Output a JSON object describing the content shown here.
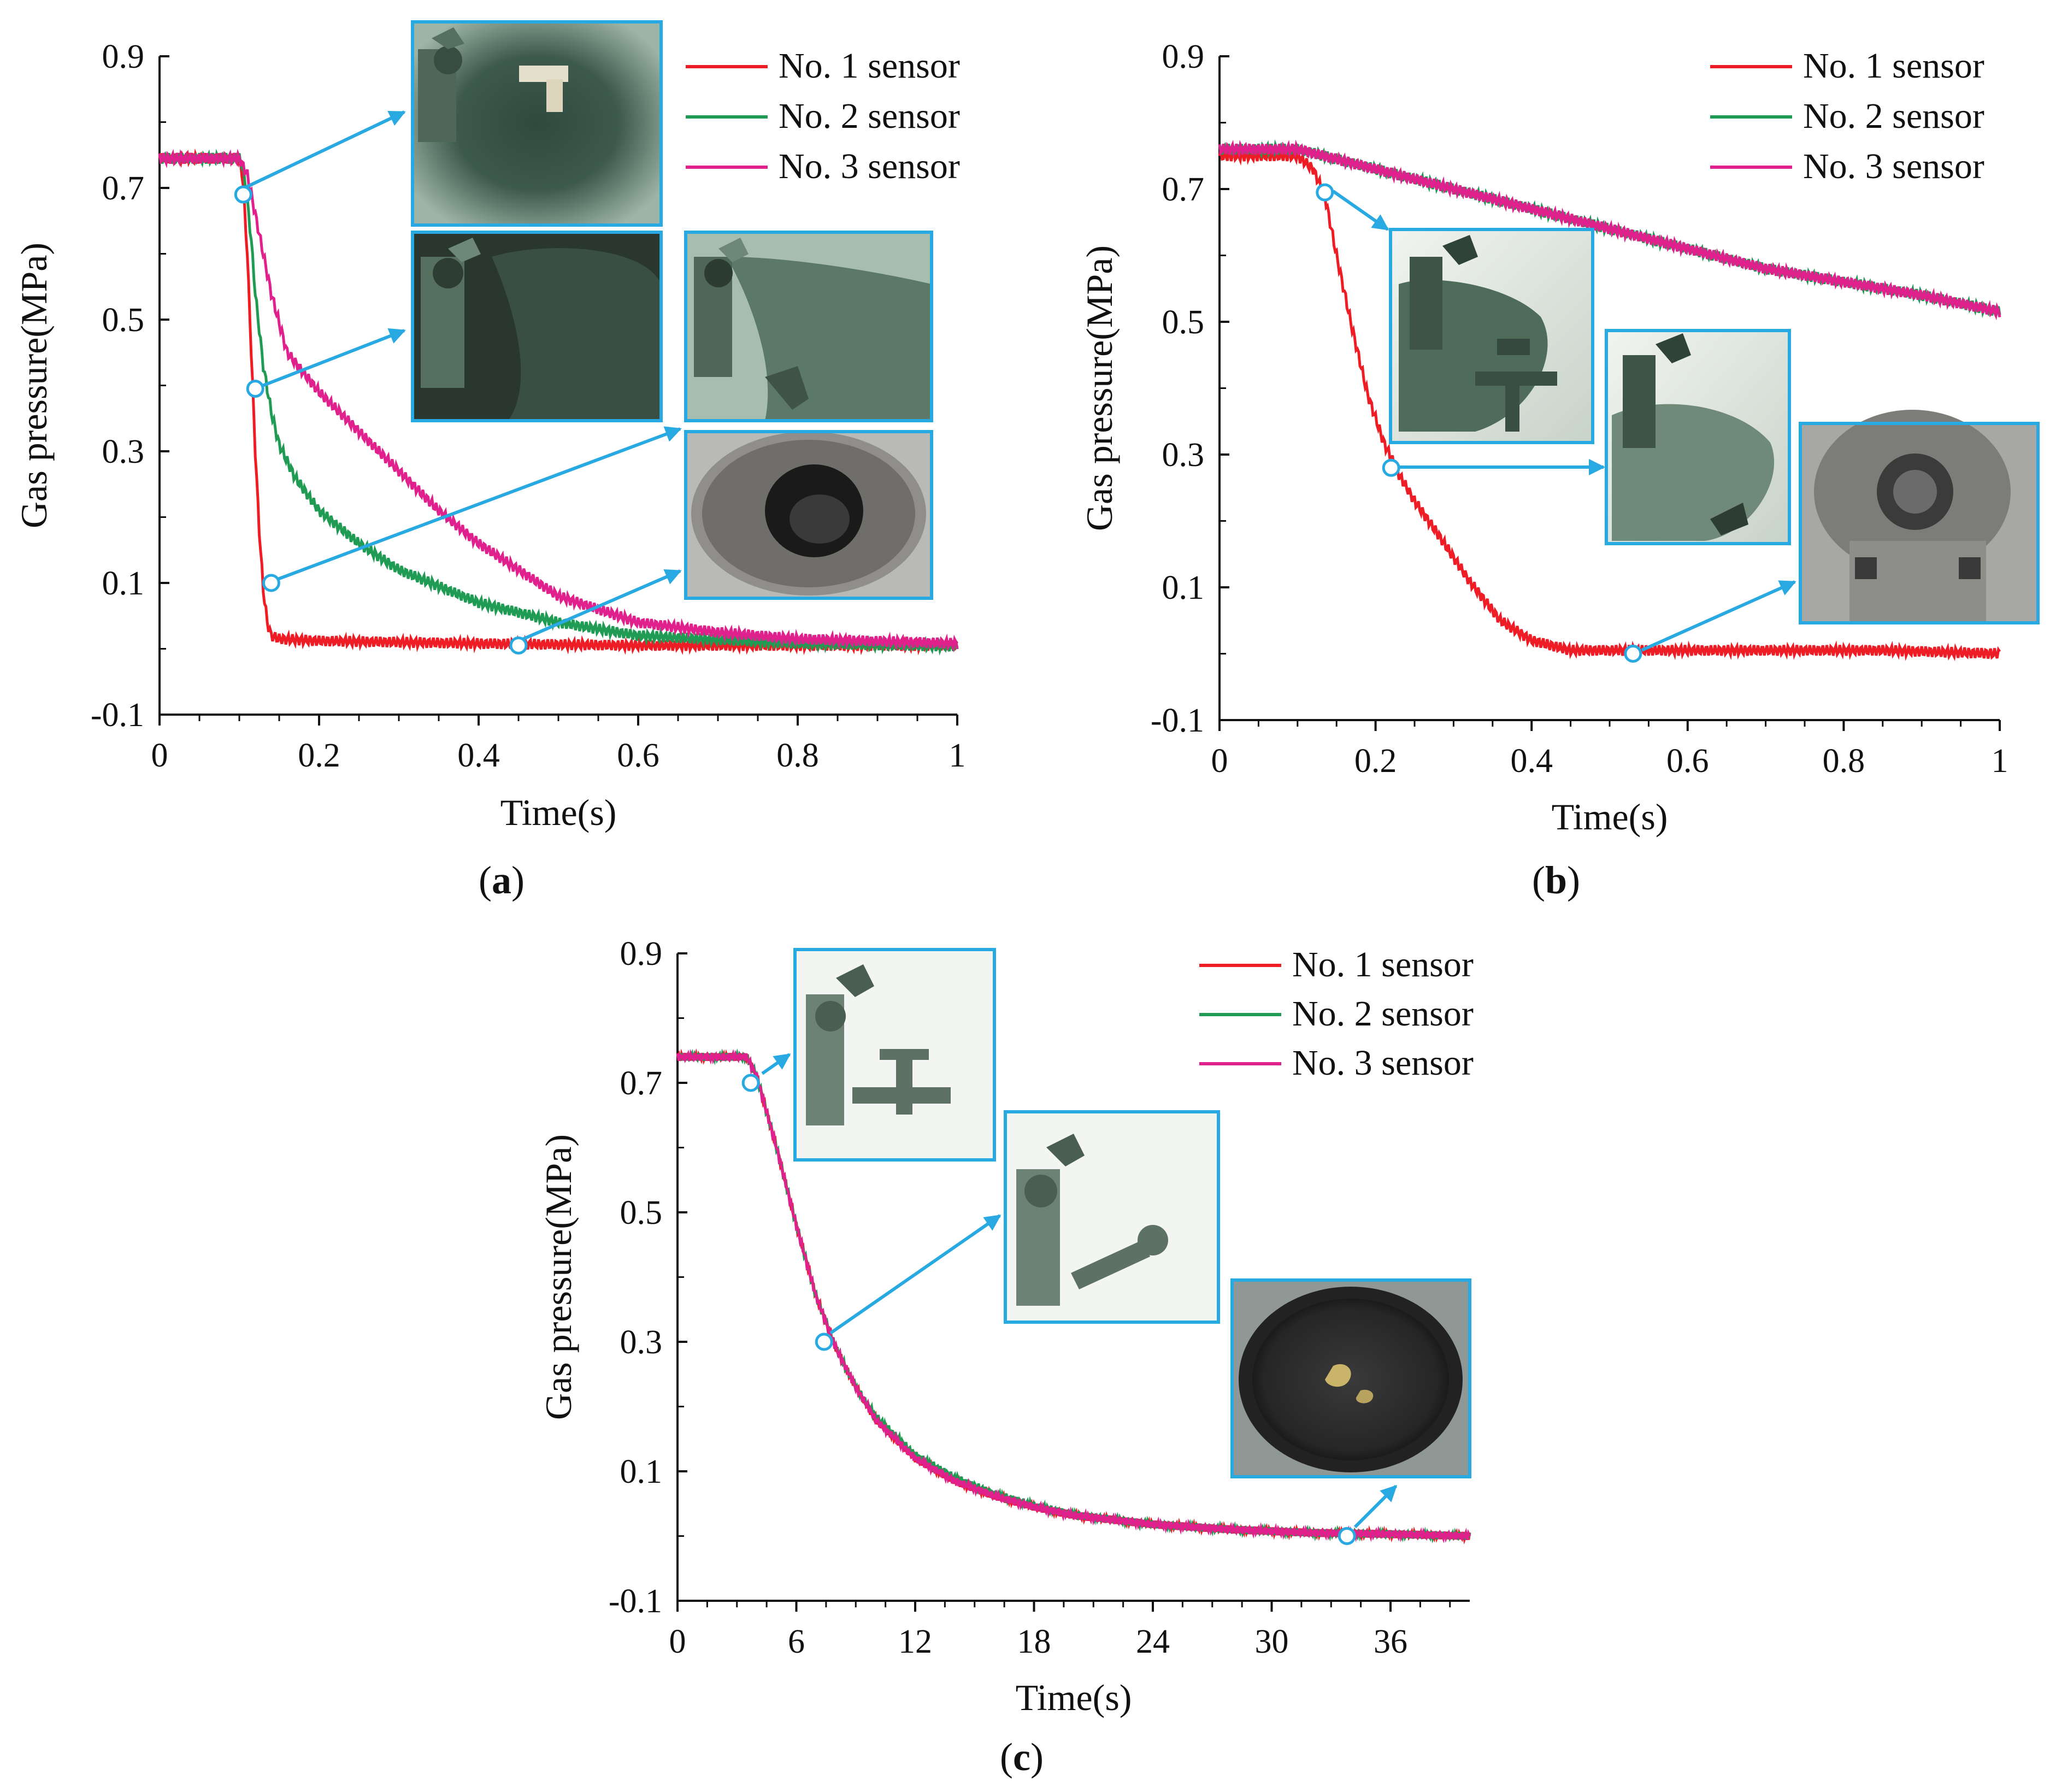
{
  "figure": {
    "panel_labels": [
      {
        "open": "(",
        "letter": "a",
        "close": ")"
      },
      {
        "open": "(",
        "letter": "b",
        "close": ")"
      },
      {
        "open": "(",
        "letter": "c",
        "close": ")"
      }
    ]
  },
  "colors": {
    "series": [
      "#ee1c25",
      "#1f9b54",
      "#e0208c"
    ],
    "arrow": "#29a9e1",
    "inset_border": "#29a9e1"
  },
  "chart_data": [
    {
      "type": "line",
      "panel": "a",
      "xlabel": "Time(s)",
      "ylabel": "Gas pressure(MPa)",
      "xlim": [
        0,
        1
      ],
      "ylim": [
        -0.1,
        0.9
      ],
      "xticks": [
        0,
        0.2,
        0.4,
        0.6,
        0.8,
        1
      ],
      "xtick_labels": [
        "0",
        "0.2",
        "0.4",
        "0.6",
        "0.8",
        "1"
      ],
      "yticks": [
        -0.1,
        0.1,
        0.3,
        0.5,
        0.7,
        0.9
      ],
      "ytick_labels": [
        "-0.1",
        "0.1",
        "0.3",
        "0.5",
        "0.7",
        "0.9"
      ],
      "legend_position": "top-right",
      "series": [
        {
          "name": "No. 1 sensor",
          "color": "#ee1c25",
          "x": [
            0,
            0.1,
            0.104,
            0.11,
            0.115,
            0.12,
            0.125,
            0.13,
            0.135,
            0.14,
            0.15,
            0.2,
            0.4,
            0.6,
            0.8,
            1
          ],
          "y": [
            0.745,
            0.745,
            0.72,
            0.6,
            0.45,
            0.3,
            0.18,
            0.09,
            0.04,
            0.02,
            0.015,
            0.012,
            0.008,
            0.005,
            0.005,
            0.005
          ]
        },
        {
          "name": "No. 2 sensor",
          "color": "#1f9b54",
          "x": [
            0,
            0.1,
            0.105,
            0.11,
            0.115,
            0.12,
            0.13,
            0.14,
            0.15,
            0.17,
            0.2,
            0.25,
            0.3,
            0.4,
            0.5,
            0.6,
            0.8,
            1
          ],
          "y": [
            0.745,
            0.745,
            0.73,
            0.68,
            0.62,
            0.54,
            0.43,
            0.36,
            0.31,
            0.26,
            0.21,
            0.16,
            0.12,
            0.07,
            0.04,
            0.02,
            0.008,
            0.004
          ]
        },
        {
          "name": "No. 3 sensor",
          "color": "#e0208c",
          "x": [
            0,
            0.1,
            0.11,
            0.12,
            0.13,
            0.14,
            0.16,
            0.2,
            0.25,
            0.3,
            0.35,
            0.4,
            0.5,
            0.6,
            0.7,
            0.8,
            1
          ],
          "y": [
            0.745,
            0.745,
            0.72,
            0.66,
            0.6,
            0.54,
            0.45,
            0.39,
            0.33,
            0.27,
            0.21,
            0.16,
            0.08,
            0.04,
            0.025,
            0.015,
            0.008
          ]
        }
      ],
      "markers": [
        {
          "x": 0.105,
          "y": 0.69
        },
        {
          "x": 0.12,
          "y": 0.395
        },
        {
          "x": 0.14,
          "y": 0.1
        },
        {
          "x": 0.45,
          "y": 0.005
        }
      ]
    },
    {
      "type": "line",
      "panel": "b",
      "xlabel": "Time(s)",
      "ylabel": "Gas pressure(MPa)",
      "xlim": [
        0,
        1
      ],
      "ylim": [
        -0.1,
        0.9
      ],
      "xticks": [
        0,
        0.2,
        0.4,
        0.6,
        0.8,
        1
      ],
      "xtick_labels": [
        "0",
        "0.2",
        "0.4",
        "0.6",
        "0.8",
        "1"
      ],
      "yticks": [
        -0.1,
        0.1,
        0.3,
        0.5,
        0.7,
        0.9
      ],
      "ytick_labels": [
        "-0.1",
        "0.1",
        "0.3",
        "0.5",
        "0.7",
        "0.9"
      ],
      "legend_position": "top-right",
      "series": [
        {
          "name": "No. 1 sensor",
          "color": "#ee1c25",
          "x": [
            0,
            0.1,
            0.12,
            0.135,
            0.15,
            0.17,
            0.19,
            0.21,
            0.23,
            0.25,
            0.28,
            0.32,
            0.36,
            0.4,
            0.45,
            0.55,
            0.7,
            0.85,
            1
          ],
          "y": [
            0.75,
            0.75,
            0.73,
            0.69,
            0.6,
            0.49,
            0.39,
            0.32,
            0.27,
            0.23,
            0.18,
            0.11,
            0.05,
            0.02,
            0.005,
            0.005,
            0.005,
            0.005,
            0.0
          ]
        },
        {
          "name": "No. 2 sensor",
          "color": "#1f9b54",
          "x": [
            0,
            0.1,
            0.2,
            0.3,
            0.4,
            0.5,
            0.6,
            0.7,
            0.8,
            0.9,
            1
          ],
          "y": [
            0.76,
            0.76,
            0.73,
            0.7,
            0.67,
            0.64,
            0.61,
            0.58,
            0.56,
            0.54,
            0.515
          ]
        },
        {
          "name": "No. 3 sensor",
          "color": "#e0208c",
          "x": [
            0,
            0.1,
            0.2,
            0.3,
            0.4,
            0.5,
            0.6,
            0.7,
            0.8,
            0.9,
            1
          ],
          "y": [
            0.76,
            0.76,
            0.73,
            0.7,
            0.67,
            0.64,
            0.61,
            0.58,
            0.56,
            0.54,
            0.515
          ]
        }
      ],
      "markers": [
        {
          "x": 0.135,
          "y": 0.695
        },
        {
          "x": 0.22,
          "y": 0.28
        },
        {
          "x": 0.53,
          "y": 0.0
        }
      ]
    },
    {
      "type": "line",
      "panel": "c",
      "xlabel": "Time(s)",
      "ylabel": "Gas pressure(MPa)",
      "xlim": [
        0,
        40
      ],
      "ylim": [
        -0.1,
        0.9
      ],
      "xticks": [
        0,
        6,
        12,
        18,
        24,
        30,
        36
      ],
      "xtick_labels": [
        "0",
        "6",
        "12",
        "18",
        "24",
        "30",
        "36"
      ],
      "yticks": [
        -0.1,
        0.1,
        0.3,
        0.5,
        0.7,
        0.9
      ],
      "ytick_labels": [
        "-0.1",
        "0.1",
        "0.3",
        "0.5",
        "0.7",
        "0.9"
      ],
      "legend_position": "top-right",
      "series": [
        {
          "name": "No. 1 sensor",
          "color": "#ee1c25",
          "x": [
            0,
            3.5,
            4,
            5,
            6,
            7,
            8,
            9,
            10,
            12,
            14,
            16,
            18,
            20,
            24,
            28,
            32,
            36,
            40
          ],
          "y": [
            0.74,
            0.74,
            0.71,
            0.6,
            0.48,
            0.37,
            0.29,
            0.23,
            0.18,
            0.12,
            0.085,
            0.062,
            0.045,
            0.032,
            0.018,
            0.01,
            0.005,
            0.003,
            0.0
          ]
        },
        {
          "name": "No. 2 sensor",
          "color": "#1f9b54",
          "x": [
            0,
            3.5,
            4,
            5,
            6,
            7,
            8,
            9,
            10,
            12,
            14,
            16,
            18,
            20,
            24,
            28,
            32,
            36,
            40
          ],
          "y": [
            0.74,
            0.74,
            0.71,
            0.6,
            0.48,
            0.37,
            0.29,
            0.23,
            0.185,
            0.125,
            0.09,
            0.065,
            0.047,
            0.033,
            0.018,
            0.01,
            0.005,
            0.003,
            0.0
          ]
        },
        {
          "name": "No. 3 sensor",
          "color": "#e0208c",
          "x": [
            0,
            3.5,
            4,
            5,
            6,
            7,
            8,
            9,
            10,
            12,
            14,
            16,
            18,
            20,
            24,
            28,
            32,
            36,
            40
          ],
          "y": [
            0.74,
            0.74,
            0.71,
            0.6,
            0.48,
            0.37,
            0.29,
            0.23,
            0.18,
            0.12,
            0.085,
            0.062,
            0.045,
            0.032,
            0.018,
            0.01,
            0.005,
            0.003,
            0.0
          ]
        }
      ],
      "markers": [
        {
          "x": 3.7,
          "y": 0.7
        },
        {
          "x": 7.4,
          "y": 0.3
        },
        {
          "x": 33.8,
          "y": 0.0
        }
      ]
    }
  ]
}
